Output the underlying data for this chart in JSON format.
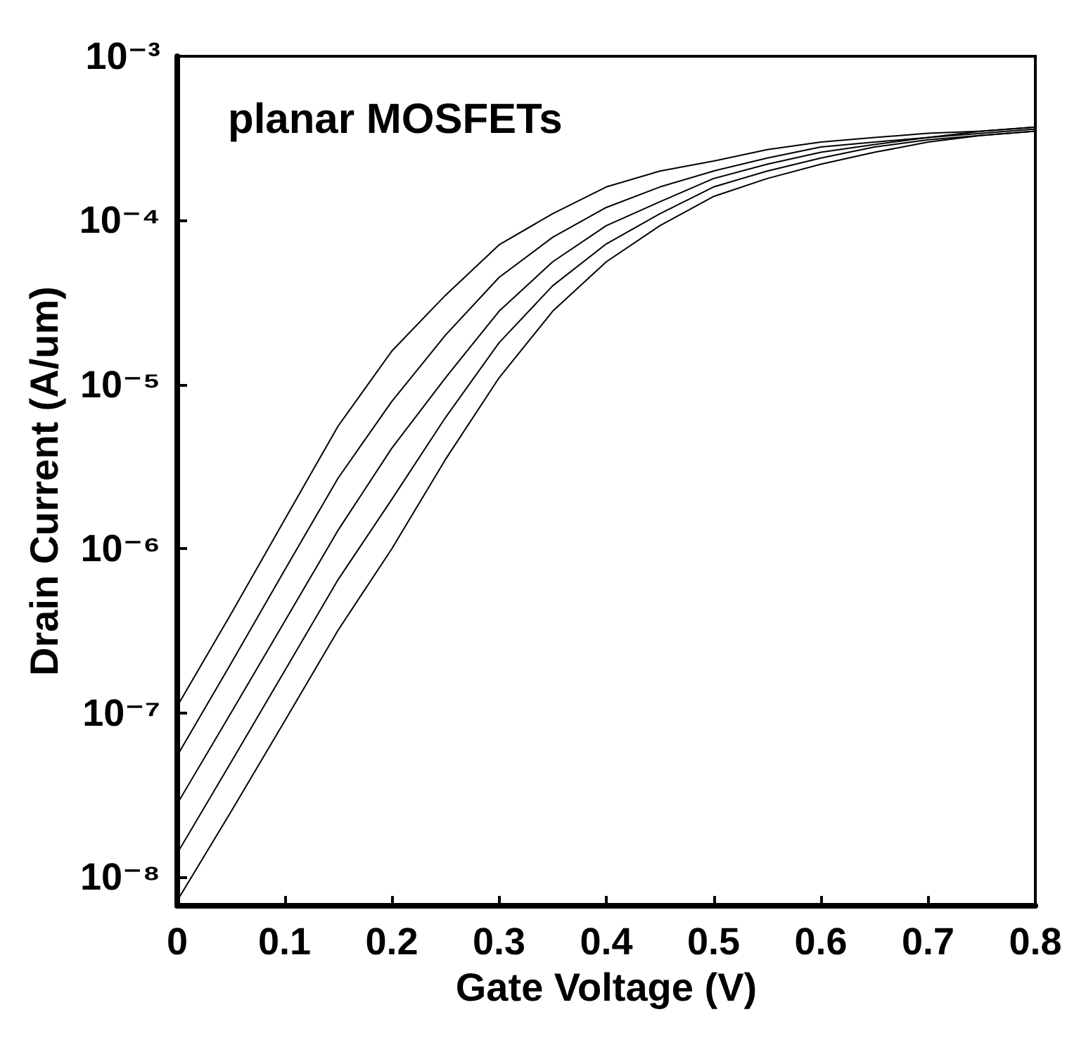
{
  "chart_data": {
    "type": "line",
    "xlabel": "Gate Voltage (V)",
    "ylabel": "Drain Current (A/um)",
    "annotations": [
      "planar MOSFETs"
    ],
    "x": [
      0,
      0.05,
      0.1,
      0.15,
      0.2,
      0.25,
      0.3,
      0.35,
      0.4,
      0.45,
      0.5,
      0.55,
      0.6,
      0.65,
      0.7,
      0.75,
      0.8
    ],
    "series": [
      {
        "color": "#000000",
        "values": [
          1.1e-07,
          4e-07,
          1.5e-06,
          5.6e-06,
          1.6e-05,
          3.5e-05,
          7.1e-05,
          0.00011,
          0.00016,
          0.0002,
          0.00023,
          0.00027,
          0.0003,
          0.00032,
          0.00034,
          0.00035,
          0.00037
        ]
      },
      {
        "color": "#000000",
        "values": [
          5.5e-08,
          2e-07,
          7.4e-07,
          2.7e-06,
          7.9e-06,
          2e-05,
          4.5e-05,
          7.9e-05,
          0.00012,
          0.00016,
          0.0002,
          0.00024,
          0.00028,
          0.0003,
          0.00032,
          0.00035,
          0.00037
        ]
      },
      {
        "color": "#000000",
        "values": [
          2.8e-08,
          1e-07,
          3.6e-07,
          1.3e-06,
          4.1e-06,
          1.1e-05,
          2.8e-05,
          5.6e-05,
          9.3e-05,
          0.00013,
          0.00018,
          0.00022,
          0.00026,
          0.00029,
          0.00032,
          0.00034,
          0.00036
        ]
      },
      {
        "color": "#000000",
        "values": [
          1.4e-08,
          5e-08,
          1.8e-07,
          6.5e-07,
          2e-06,
          6.3e-06,
          1.8e-05,
          4e-05,
          7.2e-05,
          0.00011,
          0.00016,
          0.0002,
          0.00024,
          0.00028,
          0.00031,
          0.00033,
          0.00035
        ]
      },
      {
        "color": "#000000",
        "values": [
          7.2e-09,
          2.5e-08,
          8.9e-08,
          3.2e-07,
          1e-06,
          3.5e-06,
          1.1e-05,
          2.8e-05,
          5.6e-05,
          9.3e-05,
          0.00014,
          0.00018,
          0.00022,
          0.00026,
          0.0003,
          0.00033,
          0.00035
        ]
      }
    ],
    "xlim": [
      0,
      0.8
    ],
    "xticks": [
      0,
      0.1,
      0.2,
      0.3,
      0.4,
      0.5,
      0.6,
      0.7,
      0.8
    ],
    "log": "y",
    "ylim": [
      6.7e-09,
      0.001
    ],
    "yticks": [
      {
        "value": 1e-08,
        "label": "10⁻⁸"
      },
      {
        "value": 1e-07,
        "label": "10⁻⁷"
      },
      {
        "value": 1e-06,
        "label": "10⁻⁶"
      },
      {
        "value": 1e-05,
        "label": "10⁻⁵"
      },
      {
        "value": 0.0001,
        "label": "10⁻⁴"
      },
      {
        "value": 0.001,
        "label": "10⁻³"
      }
    ],
    "grid": false,
    "marker": "none",
    "line_style": "solid"
  }
}
